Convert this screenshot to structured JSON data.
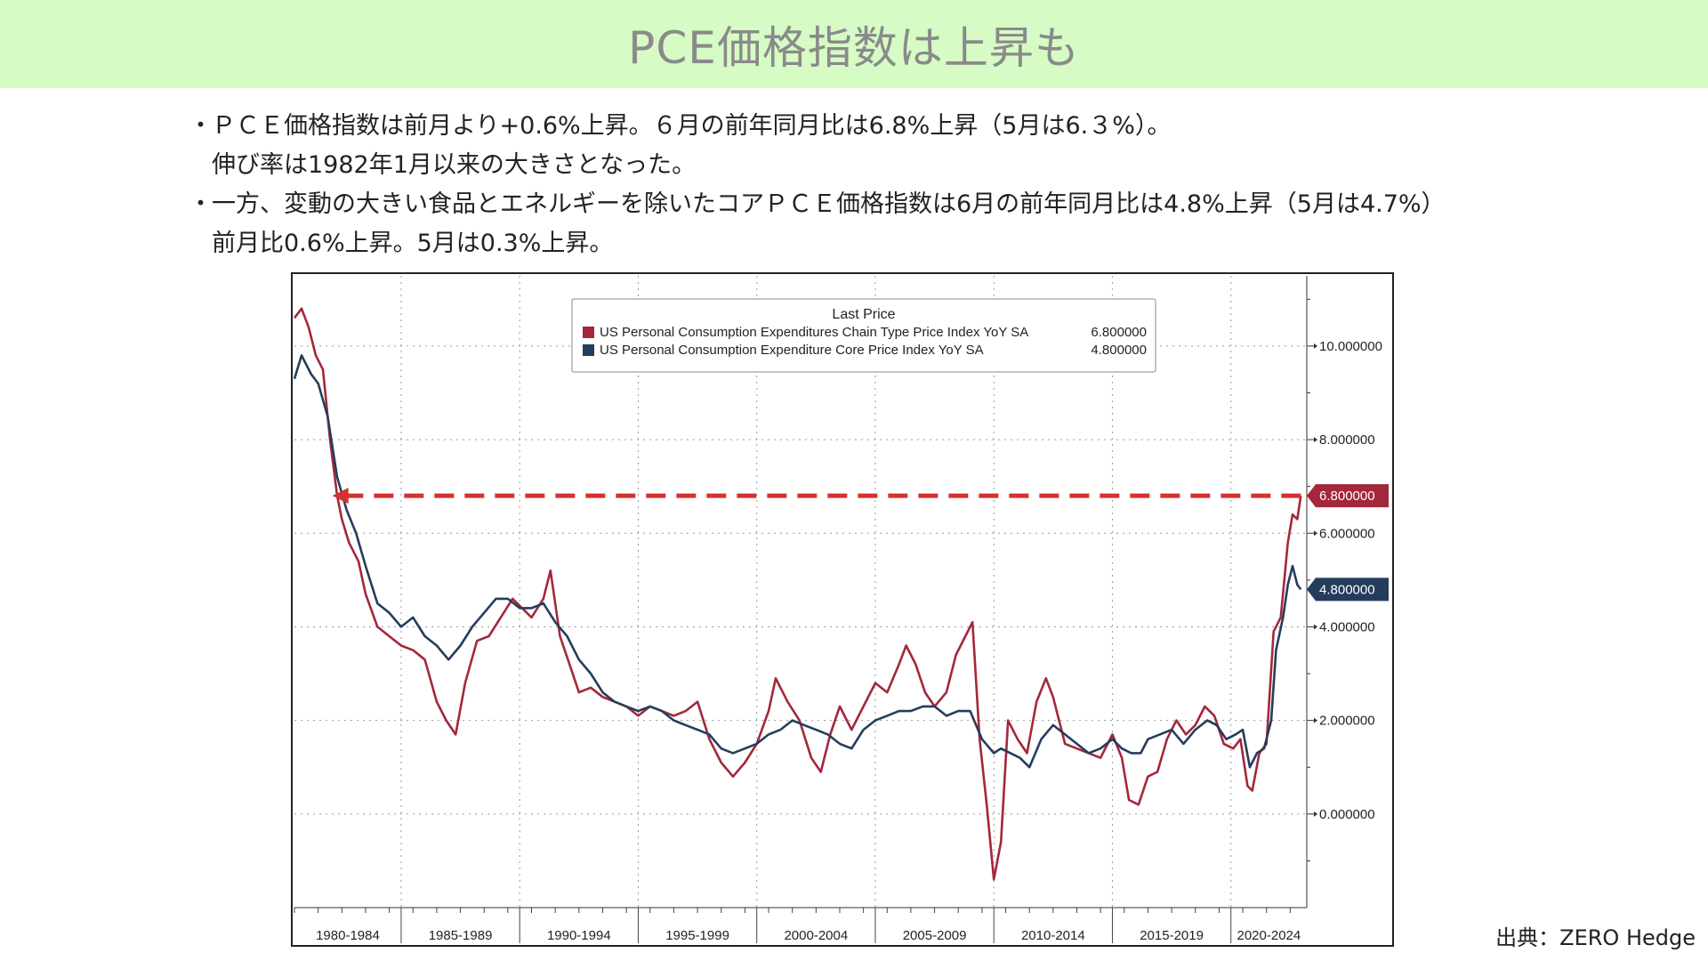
{
  "header": {
    "title": "PCE価格指数は上昇も"
  },
  "bullets": [
    {
      "marker": "・",
      "lines": [
        "ＰＣＥ価格指数は前月より+0.6%上昇。６月の前年同月比は6.8%上昇（5月は6.３%）。",
        "伸び率は1982年1月以来の大きさとなった。"
      ]
    },
    {
      "marker": "・",
      "lines": [
        "一方、変動の大きい食品とエネルギーを除いたコアＰＣＥ価格指数は6月の前年同月比は4.8%上昇（5月は4.7%）",
        "前月比0.6%上昇。5月は0.3%上昇。"
      ]
    }
  ],
  "source": "出典：ZERO Hedge",
  "chart_data": {
    "type": "line",
    "legend_title": "Last Price",
    "legend_position": "top-center",
    "grid": true,
    "ylim": [
      -2,
      11.5
    ],
    "xlim": [
      1980,
      2022.7
    ],
    "y_ticks": [
      0,
      2,
      4,
      6,
      8,
      10
    ],
    "y_tick_labels": [
      "0.000000",
      "2.000000",
      "4.000000",
      "6.000000",
      "8.000000",
      "10.000000"
    ],
    "x_groups": [
      "1980-1984",
      "1985-1989",
      "1990-1994",
      "1995-1999",
      "2000-2004",
      "2005-2009",
      "2010-2014",
      "2015-2019",
      "2020-2024"
    ],
    "x_group_bounds": [
      1980,
      1984.5,
      1989.5,
      1994.5,
      1999.5,
      2004.5,
      2009.5,
      2014.5,
      2019.5,
      2024
    ],
    "annotation": {
      "type": "dashed-arrow",
      "y": 6.8,
      "x_from": 2022.45,
      "x_to": 1981.6,
      "color": "#d63030"
    },
    "series": [
      {
        "name": "US Personal Consumption Expenditures Chain Type Price Index YoY SA",
        "last_label": "6.800000",
        "last": 6.8,
        "color": "#a3283a",
        "points": [
          [
            1980.0,
            10.6
          ],
          [
            1980.3,
            10.8
          ],
          [
            1980.6,
            10.4
          ],
          [
            1980.9,
            9.8
          ],
          [
            1981.2,
            9.5
          ],
          [
            1981.5,
            8.0
          ],
          [
            1981.8,
            6.8
          ],
          [
            1982.0,
            6.3
          ],
          [
            1982.3,
            5.8
          ],
          [
            1982.7,
            5.4
          ],
          [
            1983.0,
            4.7
          ],
          [
            1983.5,
            4.0
          ],
          [
            1984.0,
            3.8
          ],
          [
            1984.5,
            3.6
          ],
          [
            1985.0,
            3.5
          ],
          [
            1985.5,
            3.3
          ],
          [
            1986.0,
            2.4
          ],
          [
            1986.4,
            2.0
          ],
          [
            1986.8,
            1.7
          ],
          [
            1987.2,
            2.8
          ],
          [
            1987.7,
            3.7
          ],
          [
            1988.2,
            3.8
          ],
          [
            1988.7,
            4.2
          ],
          [
            1989.2,
            4.6
          ],
          [
            1989.6,
            4.4
          ],
          [
            1990.0,
            4.2
          ],
          [
            1990.5,
            4.6
          ],
          [
            1990.8,
            5.2
          ],
          [
            1991.2,
            3.8
          ],
          [
            1991.6,
            3.2
          ],
          [
            1992.0,
            2.6
          ],
          [
            1992.5,
            2.7
          ],
          [
            1993.0,
            2.5
          ],
          [
            1993.5,
            2.4
          ],
          [
            1994.0,
            2.3
          ],
          [
            1994.5,
            2.1
          ],
          [
            1995.0,
            2.3
          ],
          [
            1995.5,
            2.2
          ],
          [
            1996.0,
            2.1
          ],
          [
            1996.5,
            2.2
          ],
          [
            1997.0,
            2.4
          ],
          [
            1997.5,
            1.6
          ],
          [
            1998.0,
            1.1
          ],
          [
            1998.5,
            0.8
          ],
          [
            1999.0,
            1.1
          ],
          [
            1999.5,
            1.5
          ],
          [
            2000.0,
            2.2
          ],
          [
            2000.3,
            2.9
          ],
          [
            2000.8,
            2.4
          ],
          [
            2001.3,
            2.0
          ],
          [
            2001.8,
            1.2
          ],
          [
            2002.2,
            0.9
          ],
          [
            2002.6,
            1.7
          ],
          [
            2003.0,
            2.3
          ],
          [
            2003.5,
            1.8
          ],
          [
            2004.0,
            2.3
          ],
          [
            2004.5,
            2.8
          ],
          [
            2005.0,
            2.6
          ],
          [
            2005.5,
            3.2
          ],
          [
            2005.8,
            3.6
          ],
          [
            2006.2,
            3.2
          ],
          [
            2006.6,
            2.6
          ],
          [
            2007.0,
            2.3
          ],
          [
            2007.5,
            2.6
          ],
          [
            2007.9,
            3.4
          ],
          [
            2008.3,
            3.8
          ],
          [
            2008.6,
            4.1
          ],
          [
            2008.9,
            1.6
          ],
          [
            2009.2,
            0.2
          ],
          [
            2009.5,
            -1.4
          ],
          [
            2009.8,
            -0.6
          ],
          [
            2010.1,
            2.0
          ],
          [
            2010.5,
            1.6
          ],
          [
            2010.9,
            1.3
          ],
          [
            2011.3,
            2.4
          ],
          [
            2011.7,
            2.9
          ],
          [
            2012.0,
            2.5
          ],
          [
            2012.5,
            1.5
          ],
          [
            2013.0,
            1.4
          ],
          [
            2013.5,
            1.3
          ],
          [
            2014.0,
            1.2
          ],
          [
            2014.5,
            1.7
          ],
          [
            2014.9,
            1.2
          ],
          [
            2015.2,
            0.3
          ],
          [
            2015.6,
            0.2
          ],
          [
            2016.0,
            0.8
          ],
          [
            2016.4,
            0.9
          ],
          [
            2016.8,
            1.6
          ],
          [
            2017.2,
            2.0
          ],
          [
            2017.6,
            1.7
          ],
          [
            2018.0,
            1.9
          ],
          [
            2018.4,
            2.3
          ],
          [
            2018.8,
            2.1
          ],
          [
            2019.2,
            1.5
          ],
          [
            2019.6,
            1.4
          ],
          [
            2019.9,
            1.6
          ],
          [
            2020.2,
            0.6
          ],
          [
            2020.4,
            0.5
          ],
          [
            2020.7,
            1.3
          ],
          [
            2021.0,
            1.5
          ],
          [
            2021.3,
            3.9
          ],
          [
            2021.6,
            4.2
          ],
          [
            2021.9,
            5.8
          ],
          [
            2022.1,
            6.4
          ],
          [
            2022.3,
            6.3
          ],
          [
            2022.45,
            6.8
          ]
        ]
      },
      {
        "name": "US Personal Consumption Expenditure Core Price Index YoY SA",
        "last_label": "4.800000",
        "last": 4.8,
        "color": "#253d5c",
        "points": [
          [
            1980.0,
            9.3
          ],
          [
            1980.3,
            9.8
          ],
          [
            1980.7,
            9.4
          ],
          [
            1981.0,
            9.2
          ],
          [
            1981.4,
            8.5
          ],
          [
            1981.8,
            7.2
          ],
          [
            1982.2,
            6.5
          ],
          [
            1982.6,
            6.0
          ],
          [
            1983.0,
            5.3
          ],
          [
            1983.5,
            4.5
          ],
          [
            1984.0,
            4.3
          ],
          [
            1984.5,
            4.0
          ],
          [
            1985.0,
            4.2
          ],
          [
            1985.5,
            3.8
          ],
          [
            1986.0,
            3.6
          ],
          [
            1986.5,
            3.3
          ],
          [
            1987.0,
            3.6
          ],
          [
            1987.5,
            4.0
          ],
          [
            1988.0,
            4.3
          ],
          [
            1988.5,
            4.6
          ],
          [
            1989.0,
            4.6
          ],
          [
            1989.5,
            4.4
          ],
          [
            1990.0,
            4.4
          ],
          [
            1990.5,
            4.5
          ],
          [
            1991.0,
            4.1
          ],
          [
            1991.5,
            3.8
          ],
          [
            1992.0,
            3.3
          ],
          [
            1992.5,
            3.0
          ],
          [
            1993.0,
            2.6
          ],
          [
            1993.5,
            2.4
          ],
          [
            1994.0,
            2.3
          ],
          [
            1994.5,
            2.2
          ],
          [
            1995.0,
            2.3
          ],
          [
            1995.5,
            2.2
          ],
          [
            1996.0,
            2.0
          ],
          [
            1996.5,
            1.9
          ],
          [
            1997.0,
            1.8
          ],
          [
            1997.5,
            1.7
          ],
          [
            1998.0,
            1.4
          ],
          [
            1998.5,
            1.3
          ],
          [
            1999.0,
            1.4
          ],
          [
            1999.5,
            1.5
          ],
          [
            2000.0,
            1.7
          ],
          [
            2000.5,
            1.8
          ],
          [
            2001.0,
            2.0
          ],
          [
            2001.5,
            1.9
          ],
          [
            2002.0,
            1.8
          ],
          [
            2002.5,
            1.7
          ],
          [
            2003.0,
            1.5
          ],
          [
            2003.5,
            1.4
          ],
          [
            2004.0,
            1.8
          ],
          [
            2004.5,
            2.0
          ],
          [
            2005.0,
            2.1
          ],
          [
            2005.5,
            2.2
          ],
          [
            2006.0,
            2.2
          ],
          [
            2006.5,
            2.3
          ],
          [
            2007.0,
            2.3
          ],
          [
            2007.5,
            2.1
          ],
          [
            2008.0,
            2.2
          ],
          [
            2008.5,
            2.2
          ],
          [
            2009.0,
            1.6
          ],
          [
            2009.5,
            1.3
          ],
          [
            2009.8,
            1.4
          ],
          [
            2010.2,
            1.3
          ],
          [
            2010.6,
            1.2
          ],
          [
            2011.0,
            1.0
          ],
          [
            2011.5,
            1.6
          ],
          [
            2012.0,
            1.9
          ],
          [
            2012.5,
            1.7
          ],
          [
            2013.0,
            1.5
          ],
          [
            2013.5,
            1.3
          ],
          [
            2014.0,
            1.4
          ],
          [
            2014.5,
            1.6
          ],
          [
            2014.9,
            1.4
          ],
          [
            2015.3,
            1.3
          ],
          [
            2015.7,
            1.3
          ],
          [
            2016.0,
            1.6
          ],
          [
            2016.5,
            1.7
          ],
          [
            2017.0,
            1.8
          ],
          [
            2017.5,
            1.5
          ],
          [
            2018.0,
            1.8
          ],
          [
            2018.5,
            2.0
          ],
          [
            2018.9,
            1.9
          ],
          [
            2019.3,
            1.6
          ],
          [
            2019.7,
            1.7
          ],
          [
            2020.0,
            1.8
          ],
          [
            2020.3,
            1.0
          ],
          [
            2020.6,
            1.3
          ],
          [
            2020.9,
            1.4
          ],
          [
            2021.2,
            2.0
          ],
          [
            2021.4,
            3.5
          ],
          [
            2021.7,
            4.2
          ],
          [
            2021.9,
            4.9
          ],
          [
            2022.1,
            5.3
          ],
          [
            2022.3,
            4.9
          ],
          [
            2022.45,
            4.8
          ]
        ]
      }
    ]
  }
}
